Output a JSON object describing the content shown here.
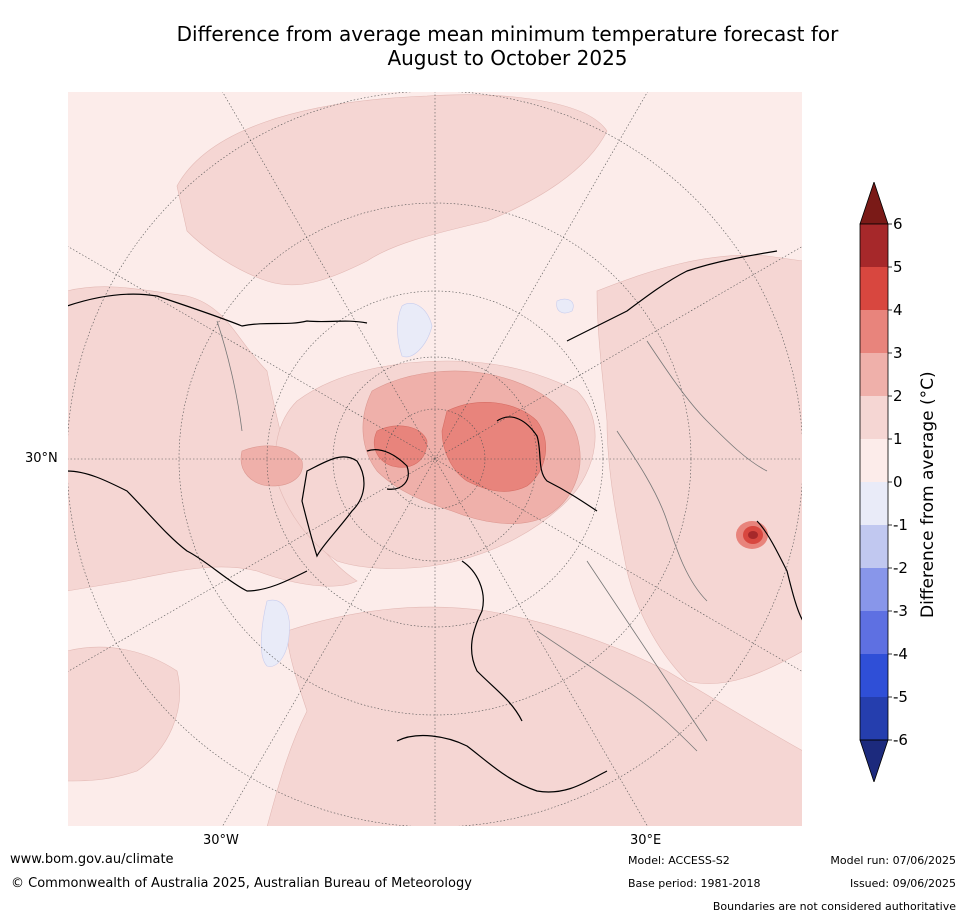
{
  "title": {
    "line1": "Difference from average mean minimum temperature forecast for",
    "line2": "August to October 2025"
  },
  "map": {
    "projection": "north-polar-stereographic",
    "lat_label": "30°N",
    "lon_labels": {
      "west": "30°W",
      "east": "30°E"
    }
  },
  "legend": {
    "title": "Difference from average (°C)",
    "ticks": [
      "6",
      "5",
      "4",
      "3",
      "2",
      "1",
      "0",
      "-1",
      "-2",
      "-3",
      "-4",
      "-5",
      "-6"
    ],
    "bins": [
      {
        "range": "> 6",
        "color": "#7a1a17"
      },
      {
        "range": "5 to 6",
        "color": "#a6282a"
      },
      {
        "range": "4 to 5",
        "color": "#d8473f"
      },
      {
        "range": "3 to 4",
        "color": "#e8847c"
      },
      {
        "range": "2 to 3",
        "color": "#efb0aa"
      },
      {
        "range": "1 to 2",
        "color": "#f5d6d3"
      },
      {
        "range": "0 to 1",
        "color": "#fcecea"
      },
      {
        "range": "-1 to 0",
        "color": "#e9ebf8"
      },
      {
        "range": "-2 to -1",
        "color": "#c1c8f0"
      },
      {
        "range": "-3 to -2",
        "color": "#8896ea"
      },
      {
        "range": "-4 to -3",
        "color": "#5e70e2"
      },
      {
        "range": "-5 to -4",
        "color": "#2f4fd7"
      },
      {
        "range": "-6 to -5",
        "color": "#253eae"
      },
      {
        "range": "< -6",
        "color": "#1c2a7d"
      }
    ]
  },
  "footer": {
    "url": "www.bom.gov.au/climate",
    "copyright": "© Commonwealth of Australia 2025, Australian Bureau of Meteorology",
    "model": "Model: ACCESS-S2",
    "base_period": "Base period: 1981-2018",
    "model_run": "Model run: 07/06/2025",
    "issued": "Issued: 09/06/2025",
    "boundaries_note": "Boundaries are not considered authoritative"
  }
}
